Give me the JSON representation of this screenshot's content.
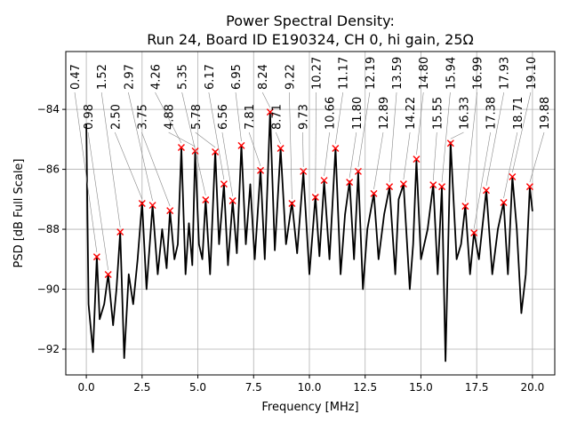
{
  "chart_data": {
    "type": "line",
    "title_lines": [
      "Power Spectral Density:",
      "Run 24, Board ID E190324, CH 0, hi gain, 25Ω"
    ],
    "xlabel": "Frequency [MHz]",
    "ylabel": "PSD [dB Full Scale]",
    "xlim": [
      -0.92,
      21.0
    ],
    "ylim": [
      -92.86,
      -82.07
    ],
    "xticks": [
      0.0,
      2.5,
      5.0,
      7.5,
      10.0,
      12.5,
      15.0,
      17.5,
      20.0
    ],
    "xtick_labels": [
      "0.0",
      "2.5",
      "5.0",
      "7.5",
      "10.0",
      "12.5",
      "15.0",
      "17.5",
      "20.0"
    ],
    "yticks": [
      -92,
      -90,
      -88,
      -86,
      -84
    ],
    "ytick_labels": [
      "−92",
      "−90",
      "−88",
      "−86",
      "−84"
    ],
    "grid": true,
    "line_color": "#000000",
    "marker_color": "#ff0000",
    "line": [
      [
        0,
        -84.5
      ],
      [
        0.1,
        -90.5
      ],
      [
        0.3,
        -92.1
      ],
      [
        0.47,
        -88.9
      ],
      [
        0.6,
        -91.0
      ],
      [
        0.8,
        -90.5
      ],
      [
        0.98,
        -89.5
      ],
      [
        1.2,
        -91.2
      ],
      [
        1.35,
        -90.0
      ],
      [
        1.52,
        -88.1
      ],
      [
        1.7,
        -92.3
      ],
      [
        1.9,
        -89.5
      ],
      [
        2.1,
        -90.5
      ],
      [
        2.3,
        -89.0
      ],
      [
        2.5,
        -87.1
      ],
      [
        2.7,
        -90.0
      ],
      [
        2.97,
        -87.2
      ],
      [
        3.2,
        -89.5
      ],
      [
        3.4,
        -88.0
      ],
      [
        3.6,
        -89.3
      ],
      [
        3.75,
        -87.4
      ],
      [
        3.95,
        -89.0
      ],
      [
        4.1,
        -88.5
      ],
      [
        4.26,
        -85.3
      ],
      [
        4.45,
        -89.5
      ],
      [
        4.6,
        -87.8
      ],
      [
        4.75,
        -89.2
      ],
      [
        4.88,
        -85.4
      ],
      [
        5.05,
        -88.5
      ],
      [
        5.2,
        -89.0
      ],
      [
        5.35,
        -87.0
      ],
      [
        5.55,
        -89.5
      ],
      [
        5.78,
        -85.4
      ],
      [
        5.95,
        -88.5
      ],
      [
        6.17,
        -86.5
      ],
      [
        6.35,
        -89.2
      ],
      [
        6.56,
        -87.05
      ],
      [
        6.75,
        -88.8
      ],
      [
        6.95,
        -85.2
      ],
      [
        7.15,
        -88.5
      ],
      [
        7.35,
        -86.5
      ],
      [
        7.55,
        -89.0
      ],
      [
        7.81,
        -86.0
      ],
      [
        8.0,
        -89.0
      ],
      [
        8.24,
        -84.1
      ],
      [
        8.45,
        -88.7
      ],
      [
        8.71,
        -85.3
      ],
      [
        8.95,
        -88.5
      ],
      [
        9.22,
        -87.1
      ],
      [
        9.45,
        -88.8
      ],
      [
        9.73,
        -86.1
      ],
      [
        10.0,
        -89.5
      ],
      [
        10.27,
        -86.9
      ],
      [
        10.45,
        -88.9
      ],
      [
        10.66,
        -86.4
      ],
      [
        10.9,
        -89.0
      ],
      [
        11.17,
        -85.3
      ],
      [
        11.4,
        -89.5
      ],
      [
        11.6,
        -87.5
      ],
      [
        11.8,
        -86.4
      ],
      [
        12.0,
        -89.0
      ],
      [
        12.19,
        -86.1
      ],
      [
        12.4,
        -90.0
      ],
      [
        12.6,
        -88.0
      ],
      [
        12.89,
        -86.8
      ],
      [
        13.1,
        -89.0
      ],
      [
        13.35,
        -87.5
      ],
      [
        13.59,
        -86.6
      ],
      [
        13.85,
        -89.5
      ],
      [
        14.0,
        -87.0
      ],
      [
        14.22,
        -86.5
      ],
      [
        14.5,
        -90.0
      ],
      [
        14.65,
        -88.5
      ],
      [
        14.8,
        -85.7
      ],
      [
        15.0,
        -89.0
      ],
      [
        15.3,
        -88.0
      ],
      [
        15.55,
        -86.5
      ],
      [
        15.75,
        -89.5
      ],
      [
        15.94,
        -86.6
      ],
      [
        16.1,
        -92.4
      ],
      [
        16.33,
        -85.1
      ],
      [
        16.6,
        -89.0
      ],
      [
        16.8,
        -88.5
      ],
      [
        16.99,
        -87.2
      ],
      [
        17.2,
        -89.5
      ],
      [
        17.38,
        -88.1
      ],
      [
        17.6,
        -89.0
      ],
      [
        17.93,
        -86.7
      ],
      [
        18.2,
        -89.5
      ],
      [
        18.45,
        -88.0
      ],
      [
        18.71,
        -87.1
      ],
      [
        18.9,
        -89.5
      ],
      [
        19.1,
        -86.25
      ],
      [
        19.3,
        -88.0
      ],
      [
        19.5,
        -90.8
      ],
      [
        19.7,
        -89.5
      ],
      [
        19.88,
        -86.6
      ],
      [
        20.0,
        -87.4
      ]
    ],
    "peaks": [
      {
        "x": 0.47,
        "y": -88.92,
        "label": "0.47"
      },
      {
        "x": 0.98,
        "y": -89.51,
        "label": "0.98"
      },
      {
        "x": 1.52,
        "y": -88.09,
        "label": "1.52"
      },
      {
        "x": 2.5,
        "y": -87.14,
        "label": "2.50"
      },
      {
        "x": 2.97,
        "y": -87.2,
        "label": "2.97"
      },
      {
        "x": 3.75,
        "y": -87.38,
        "label": "3.75"
      },
      {
        "x": 4.26,
        "y": -85.27,
        "label": "4.26"
      },
      {
        "x": 4.88,
        "y": -85.39,
        "label": "4.88"
      },
      {
        "x": 5.35,
        "y": -87.02,
        "label": "5.35"
      },
      {
        "x": 5.78,
        "y": -85.42,
        "label": "5.78"
      },
      {
        "x": 6.17,
        "y": -86.49,
        "label": "6.17"
      },
      {
        "x": 6.56,
        "y": -87.05,
        "label": "6.56"
      },
      {
        "x": 6.95,
        "y": -85.21,
        "label": "6.95"
      },
      {
        "x": 7.81,
        "y": -86.04,
        "label": "7.81"
      },
      {
        "x": 8.24,
        "y": -84.09,
        "label": "8.24"
      },
      {
        "x": 8.71,
        "y": -85.3,
        "label": "8.71"
      },
      {
        "x": 9.22,
        "y": -87.14,
        "label": "9.22"
      },
      {
        "x": 9.73,
        "y": -86.07,
        "label": "9.73"
      },
      {
        "x": 10.27,
        "y": -86.93,
        "label": "10.27"
      },
      {
        "x": 10.66,
        "y": -86.37,
        "label": "10.66"
      },
      {
        "x": 11.17,
        "y": -85.3,
        "label": "11.17"
      },
      {
        "x": 11.8,
        "y": -86.43,
        "label": "11.80"
      },
      {
        "x": 12.19,
        "y": -86.07,
        "label": "12.19"
      },
      {
        "x": 12.89,
        "y": -86.81,
        "label": "12.89"
      },
      {
        "x": 13.59,
        "y": -86.58,
        "label": "13.59"
      },
      {
        "x": 14.22,
        "y": -86.49,
        "label": "14.22"
      },
      {
        "x": 14.8,
        "y": -85.66,
        "label": "14.80"
      },
      {
        "x": 15.55,
        "y": -86.52,
        "label": "15.55"
      },
      {
        "x": 15.94,
        "y": -86.58,
        "label": "15.94"
      },
      {
        "x": 16.33,
        "y": -85.13,
        "label": "16.33"
      },
      {
        "x": 16.99,
        "y": -87.23,
        "label": "16.99"
      },
      {
        "x": 17.38,
        "y": -88.12,
        "label": "17.38"
      },
      {
        "x": 17.93,
        "y": -86.7,
        "label": "17.93"
      },
      {
        "x": 18.71,
        "y": -87.11,
        "label": "18.71"
      },
      {
        "x": 19.1,
        "y": -86.25,
        "label": "19.10"
      },
      {
        "x": 19.88,
        "y": -86.58,
        "label": "19.88"
      }
    ]
  }
}
